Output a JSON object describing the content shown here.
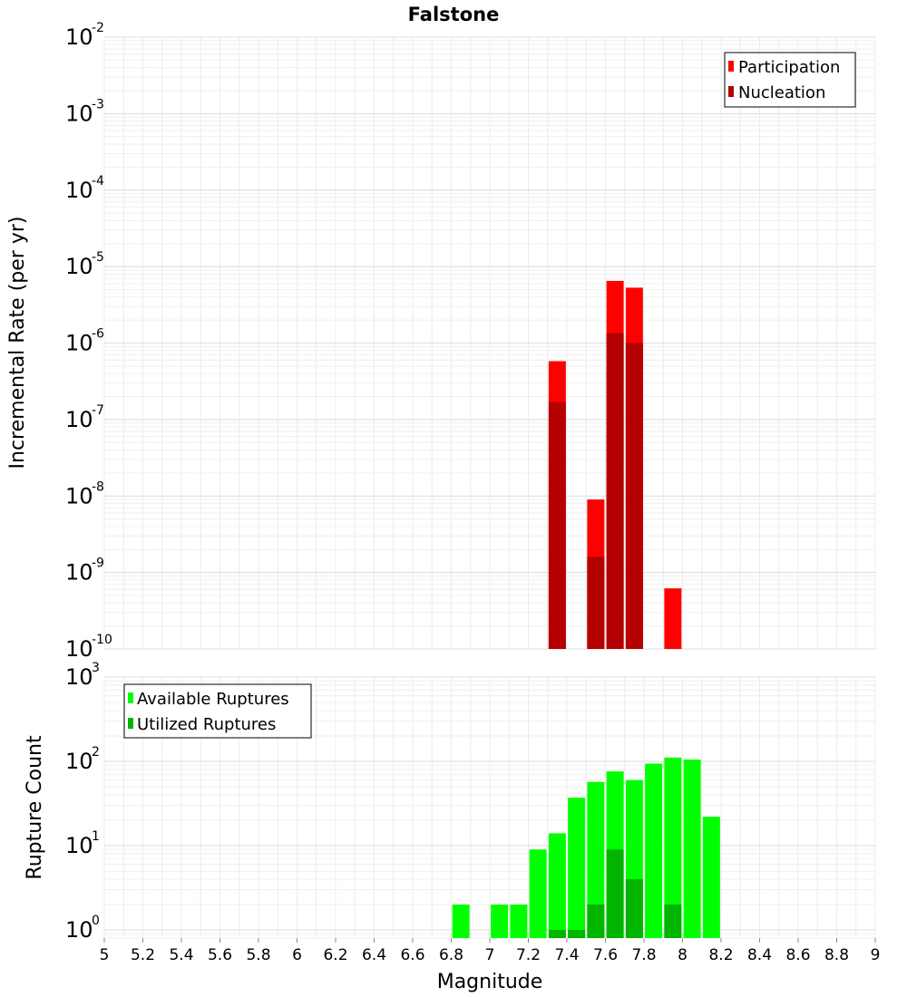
{
  "chart_data": [
    {
      "type": "bar",
      "title": "Falstone",
      "xlabel": "",
      "ylabel": "Incremental Rate (per yr)",
      "yscale": "log",
      "ylim": [
        1e-10,
        0.01
      ],
      "xlim": [
        5,
        9
      ],
      "y_tick_labels": [
        {
          "base": "10",
          "exp": "-10"
        },
        {
          "base": "10",
          "exp": "-9"
        },
        {
          "base": "10",
          "exp": "-8"
        },
        {
          "base": "10",
          "exp": "-7"
        },
        {
          "base": "10",
          "exp": "-6"
        },
        {
          "base": "10",
          "exp": "-5"
        },
        {
          "base": "10",
          "exp": "-4"
        },
        {
          "base": "10",
          "exp": "-3"
        },
        {
          "base": "10",
          "exp": "-2"
        }
      ],
      "legend": {
        "position": "top-right",
        "entries": [
          "Participation",
          "Nucleation"
        ]
      },
      "series": [
        {
          "name": "Participation",
          "color": "#ff0000",
          "x": [
            7.35,
            7.55,
            7.65,
            7.75,
            7.95
          ],
          "values": [
            5.8e-07,
            9e-09,
            6.5e-06,
            5.3e-06,
            6.2e-10
          ]
        },
        {
          "name": "Nucleation",
          "color": "#b40000",
          "x": [
            7.35,
            7.55,
            7.65,
            7.75
          ],
          "values": [
            1.7e-07,
            1.6e-09,
            1.35e-06,
            1e-06
          ]
        }
      ]
    },
    {
      "type": "bar",
      "title": "",
      "xlabel": "Magnitude",
      "ylabel": "Rupture Count",
      "yscale": "log",
      "ylim": [
        0.8,
        1000
      ],
      "xlim": [
        5,
        9
      ],
      "x_tick_labels": [
        "5",
        "5.2",
        "5.4",
        "5.6",
        "5.8",
        "6",
        "6.2",
        "6.4",
        "6.6",
        "6.8",
        "7",
        "7.2",
        "7.4",
        "7.6",
        "7.8",
        "8",
        "8.2",
        "8.4",
        "8.6",
        "8.8",
        "9"
      ],
      "y_tick_labels": [
        {
          "base": "10",
          "exp": "0"
        },
        {
          "base": "10",
          "exp": "1"
        },
        {
          "base": "10",
          "exp": "2"
        },
        {
          "base": "10",
          "exp": "3"
        }
      ],
      "legend": {
        "position": "top-left",
        "entries": [
          "Available Ruptures",
          "Utilized Ruptures"
        ]
      },
      "series": [
        {
          "name": "Available Ruptures",
          "color": "#00ff00",
          "x": [
            6.85,
            7.05,
            7.15,
            7.25,
            7.35,
            7.45,
            7.55,
            7.65,
            7.75,
            7.85,
            7.95,
            8.05,
            8.15
          ],
          "values": [
            2,
            2,
            2,
            9,
            14,
            37,
            57,
            76,
            60,
            94,
            111,
            105,
            22
          ]
        },
        {
          "name": "Utilized Ruptures",
          "color": "#00b400",
          "x": [
            7.35,
            7.45,
            7.55,
            7.65,
            7.75,
            7.95
          ],
          "values": [
            1,
            1,
            2,
            9,
            4,
            2
          ]
        }
      ]
    }
  ]
}
